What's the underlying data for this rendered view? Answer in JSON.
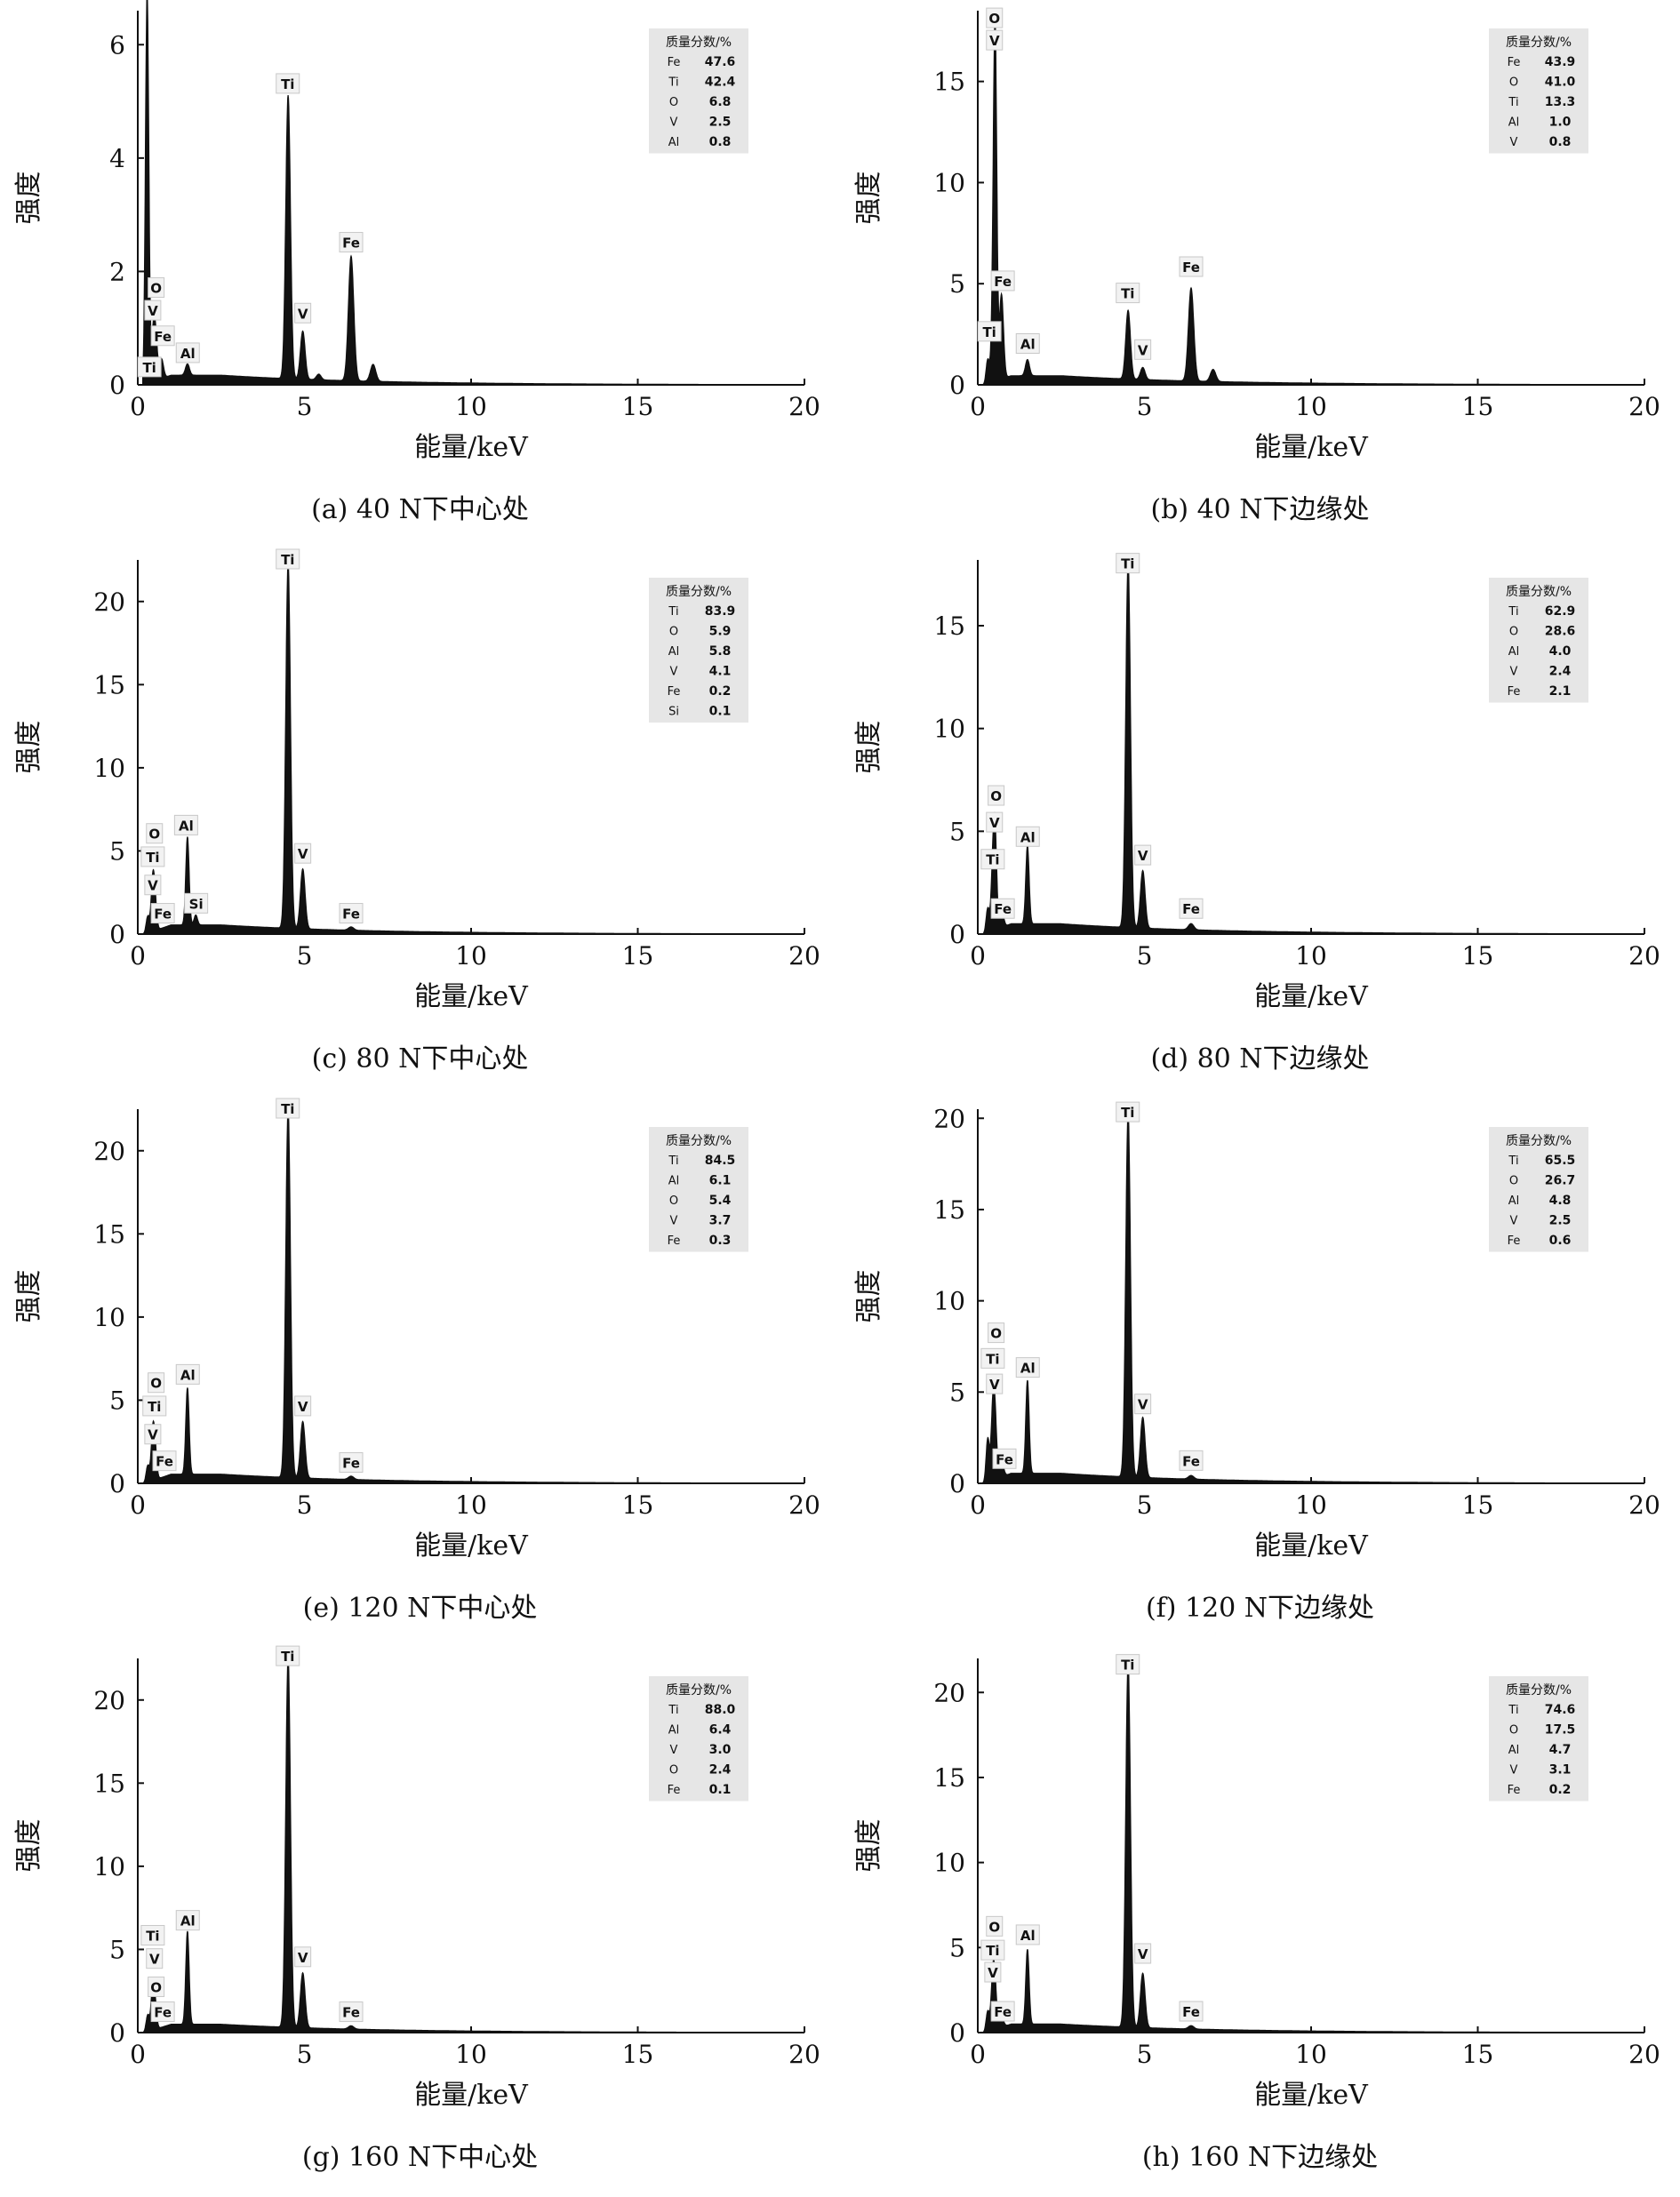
{
  "chart_data": [
    {
      "id": "a",
      "type": "line",
      "caption": "(a) 40 N下中心处",
      "xlabel": "能量/keV",
      "ylabel": "强度",
      "xlim": [
        0,
        20
      ],
      "ylim": [
        0,
        6.6
      ],
      "yticks": [
        0,
        2,
        4,
        6
      ],
      "xticks": [
        0,
        5,
        10,
        15,
        20
      ],
      "grid": false,
      "legend_placement": "top-right",
      "legend_title": "质量分数/%",
      "composition": [
        {
          "element": "Fe",
          "value": "47.6"
        },
        {
          "element": "Ti",
          "value": "42.4"
        },
        {
          "element": "O",
          "value": "6.8"
        },
        {
          "element": "V",
          "value": "2.5"
        },
        {
          "element": "Al",
          "value": "0.8"
        }
      ],
      "peaks": [
        {
          "x": 0.28,
          "y": 6.9,
          "w": 0.05
        },
        {
          "x": 0.45,
          "y": 0.5,
          "w": 0.05
        },
        {
          "x": 0.52,
          "y": 0.9,
          "w": 0.06
        },
        {
          "x": 0.71,
          "y": 0.35,
          "w": 0.06
        },
        {
          "x": 1.49,
          "y": 0.2,
          "w": 0.06
        },
        {
          "x": 4.51,
          "y": 5.0,
          "w": 0.07
        },
        {
          "x": 4.95,
          "y": 0.85,
          "w": 0.07
        },
        {
          "x": 5.43,
          "y": 0.1,
          "w": 0.07
        },
        {
          "x": 6.4,
          "y": 2.2,
          "w": 0.08
        },
        {
          "x": 7.06,
          "y": 0.3,
          "w": 0.08
        }
      ],
      "background": 0.17,
      "labels": [
        {
          "text": "O",
          "x": 0.55,
          "y": 1.7
        },
        {
          "text": "V",
          "x": 0.45,
          "y": 1.3
        },
        {
          "text": "Fe",
          "x": 0.75,
          "y": 0.85
        },
        {
          "text": "Ti",
          "x": 0.35,
          "y": 0.3
        },
        {
          "text": "Al",
          "x": 1.5,
          "y": 0.55
        },
        {
          "text": "Ti",
          "x": 4.5,
          "y": 5.3
        },
        {
          "text": "V",
          "x": 4.95,
          "y": 1.25
        },
        {
          "text": "Fe",
          "x": 6.4,
          "y": 2.5
        }
      ]
    },
    {
      "id": "b",
      "type": "line",
      "caption": "(b) 40 N下边缘处",
      "xlabel": "能量/keV",
      "ylabel": "强度",
      "xlim": [
        0,
        20
      ],
      "ylim": [
        0,
        18.5
      ],
      "yticks": [
        0,
        5,
        10,
        15
      ],
      "xticks": [
        0,
        5,
        10,
        15,
        20
      ],
      "grid": false,
      "legend_placement": "top-right",
      "legend_title": "质量分数/%",
      "composition": [
        {
          "element": "Fe",
          "value": "43.9"
        },
        {
          "element": "O",
          "value": "41.0"
        },
        {
          "element": "Ti",
          "value": "13.3"
        },
        {
          "element": "Al",
          "value": "1.0"
        },
        {
          "element": "V",
          "value": "0.8"
        }
      ],
      "peaks": [
        {
          "x": 0.3,
          "y": 1.2,
          "w": 0.05
        },
        {
          "x": 0.45,
          "y": 2.5,
          "w": 0.05
        },
        {
          "x": 0.52,
          "y": 17.0,
          "w": 0.05
        },
        {
          "x": 0.71,
          "y": 4.2,
          "w": 0.06
        },
        {
          "x": 1.49,
          "y": 0.8,
          "w": 0.06
        },
        {
          "x": 4.51,
          "y": 3.4,
          "w": 0.07
        },
        {
          "x": 4.95,
          "y": 0.6,
          "w": 0.07
        },
        {
          "x": 6.4,
          "y": 4.6,
          "w": 0.08
        },
        {
          "x": 7.06,
          "y": 0.6,
          "w": 0.08
        }
      ],
      "background": 0.45,
      "labels": [
        {
          "text": "O",
          "x": 0.5,
          "y": 18.1
        },
        {
          "text": "V",
          "x": 0.5,
          "y": 17.0
        },
        {
          "text": "Fe",
          "x": 0.75,
          "y": 5.1
        },
        {
          "text": "Ti",
          "x": 0.35,
          "y": 2.6
        },
        {
          "text": "Al",
          "x": 1.5,
          "y": 2.0
        },
        {
          "text": "Ti",
          "x": 4.5,
          "y": 4.5
        },
        {
          "text": "V",
          "x": 4.95,
          "y": 1.7
        },
        {
          "text": "Fe",
          "x": 6.4,
          "y": 5.8
        }
      ]
    },
    {
      "id": "c",
      "type": "line",
      "caption": "(c) 80 N下中心处",
      "xlabel": "能量/keV",
      "ylabel": "强度",
      "xlim": [
        0,
        20
      ],
      "ylim": [
        0,
        22.5
      ],
      "yticks": [
        0,
        5,
        10,
        15,
        20
      ],
      "xticks": [
        0,
        5,
        10,
        15,
        20
      ],
      "grid": false,
      "legend_placement": "top-right",
      "legend_title": "质量分数/%",
      "composition": [
        {
          "element": "Ti",
          "value": "83.9"
        },
        {
          "element": "O",
          "value": "5.9"
        },
        {
          "element": "Al",
          "value": "5.8"
        },
        {
          "element": "V",
          "value": "4.1"
        },
        {
          "element": "Fe",
          "value": "0.2"
        },
        {
          "element": "Si",
          "value": "0.1"
        }
      ],
      "peaks": [
        {
          "x": 0.3,
          "y": 1.0,
          "w": 0.05
        },
        {
          "x": 0.45,
          "y": 3.0,
          "w": 0.05
        },
        {
          "x": 0.52,
          "y": 1.5,
          "w": 0.05
        },
        {
          "x": 1.49,
          "y": 5.3,
          "w": 0.05
        },
        {
          "x": 1.74,
          "y": 0.6,
          "w": 0.05
        },
        {
          "x": 4.51,
          "y": 22.0,
          "w": 0.07
        },
        {
          "x": 4.95,
          "y": 3.6,
          "w": 0.07
        },
        {
          "x": 6.4,
          "y": 0.2,
          "w": 0.08
        }
      ],
      "background": 0.55,
      "labels": [
        {
          "text": "O",
          "x": 0.5,
          "y": 6.0
        },
        {
          "text": "Ti",
          "x": 0.45,
          "y": 4.6
        },
        {
          "text": "V",
          "x": 0.45,
          "y": 2.9
        },
        {
          "text": "Fe",
          "x": 0.75,
          "y": 1.2
        },
        {
          "text": "Al",
          "x": 1.45,
          "y": 6.5
        },
        {
          "text": "Si",
          "x": 1.75,
          "y": 1.8
        },
        {
          "text": "Ti",
          "x": 4.5,
          "y": 22.5
        },
        {
          "text": "V",
          "x": 4.95,
          "y": 4.8
        },
        {
          "text": "Fe",
          "x": 6.4,
          "y": 1.2
        }
      ]
    },
    {
      "id": "d",
      "type": "line",
      "caption": "(d) 80 N下边缘处",
      "xlabel": "能量/keV",
      "ylabel": "强度",
      "xlim": [
        0,
        20
      ],
      "ylim": [
        0,
        18.2
      ],
      "yticks": [
        0,
        5,
        10,
        15
      ],
      "xticks": [
        0,
        5,
        10,
        15,
        20
      ],
      "grid": false,
      "legend_placement": "top-right",
      "legend_title": "质量分数/%",
      "composition": [
        {
          "element": "Ti",
          "value": "62.9"
        },
        {
          "element": "O",
          "value": "28.6"
        },
        {
          "element": "Al",
          "value": "4.0"
        },
        {
          "element": "V",
          "value": "2.4"
        },
        {
          "element": "Fe",
          "value": "2.1"
        }
      ],
      "peaks": [
        {
          "x": 0.3,
          "y": 1.2,
          "w": 0.05
        },
        {
          "x": 0.45,
          "y": 2.8,
          "w": 0.05
        },
        {
          "x": 0.52,
          "y": 4.3,
          "w": 0.05
        },
        {
          "x": 0.71,
          "y": 0.9,
          "w": 0.06
        },
        {
          "x": 1.49,
          "y": 3.8,
          "w": 0.05
        },
        {
          "x": 4.51,
          "y": 17.8,
          "w": 0.07
        },
        {
          "x": 4.95,
          "y": 2.8,
          "w": 0.07
        },
        {
          "x": 6.4,
          "y": 0.3,
          "w": 0.08
        }
      ],
      "background": 0.5,
      "labels": [
        {
          "text": "O",
          "x": 0.55,
          "y": 6.7
        },
        {
          "text": "V",
          "x": 0.5,
          "y": 5.4
        },
        {
          "text": "Ti",
          "x": 0.45,
          "y": 3.6
        },
        {
          "text": "Fe",
          "x": 0.75,
          "y": 1.2
        },
        {
          "text": "Al",
          "x": 1.5,
          "y": 4.7
        },
        {
          "text": "Ti",
          "x": 4.5,
          "y": 18.0
        },
        {
          "text": "V",
          "x": 4.95,
          "y": 3.8
        },
        {
          "text": "Fe",
          "x": 6.4,
          "y": 1.2
        }
      ]
    },
    {
      "id": "e",
      "type": "line",
      "caption": "(e) 120 N下中心处",
      "xlabel": "能量/keV",
      "ylabel": "强度",
      "xlim": [
        0,
        20
      ],
      "ylim": [
        0,
        22.5
      ],
      "yticks": [
        0,
        5,
        10,
        15,
        20
      ],
      "xticks": [
        0,
        5,
        10,
        15,
        20
      ],
      "grid": false,
      "legend_placement": "top-right",
      "legend_title": "质量分数/%",
      "composition": [
        {
          "element": "Ti",
          "value": "84.5"
        },
        {
          "element": "Al",
          "value": "6.1"
        },
        {
          "element": "O",
          "value": "5.4"
        },
        {
          "element": "V",
          "value": "3.7"
        },
        {
          "element": "Fe",
          "value": "0.3"
        }
      ],
      "peaks": [
        {
          "x": 0.3,
          "y": 1.0,
          "w": 0.05
        },
        {
          "x": 0.45,
          "y": 2.8,
          "w": 0.05
        },
        {
          "x": 0.52,
          "y": 1.6,
          "w": 0.05
        },
        {
          "x": 1.49,
          "y": 5.2,
          "w": 0.05
        },
        {
          "x": 4.51,
          "y": 22.2,
          "w": 0.07
        },
        {
          "x": 4.95,
          "y": 3.4,
          "w": 0.07
        },
        {
          "x": 6.4,
          "y": 0.2,
          "w": 0.08
        }
      ],
      "background": 0.55,
      "labels": [
        {
          "text": "O",
          "x": 0.55,
          "y": 6.0
        },
        {
          "text": "Ti",
          "x": 0.5,
          "y": 4.6
        },
        {
          "text": "V",
          "x": 0.45,
          "y": 2.9
        },
        {
          "text": "Fe",
          "x": 0.8,
          "y": 1.3
        },
        {
          "text": "Al",
          "x": 1.5,
          "y": 6.5
        },
        {
          "text": "Ti",
          "x": 4.5,
          "y": 22.5
        },
        {
          "text": "V",
          "x": 4.95,
          "y": 4.6
        },
        {
          "text": "Fe",
          "x": 6.4,
          "y": 1.2
        }
      ]
    },
    {
      "id": "f",
      "type": "line",
      "caption": "(f) 120 N下边缘处",
      "xlabel": "能量/keV",
      "ylabel": "强度",
      "xlim": [
        0,
        20
      ],
      "ylim": [
        0,
        20.5
      ],
      "yticks": [
        0,
        5,
        10,
        15,
        20
      ],
      "xticks": [
        0,
        5,
        10,
        15,
        20
      ],
      "grid": false,
      "legend_placement": "top-right",
      "legend_title": "质量分数/%",
      "composition": [
        {
          "element": "Ti",
          "value": "65.5"
        },
        {
          "element": "O",
          "value": "26.7"
        },
        {
          "element": "Al",
          "value": "4.8"
        },
        {
          "element": "V",
          "value": "2.5"
        },
        {
          "element": "Fe",
          "value": "0.6"
        }
      ],
      "peaks": [
        {
          "x": 0.3,
          "y": 2.4,
          "w": 0.05
        },
        {
          "x": 0.45,
          "y": 3.6,
          "w": 0.05
        },
        {
          "x": 0.52,
          "y": 3.0,
          "w": 0.05
        },
        {
          "x": 0.71,
          "y": 0.9,
          "w": 0.06
        },
        {
          "x": 1.49,
          "y": 5.1,
          "w": 0.05
        },
        {
          "x": 4.51,
          "y": 20.0,
          "w": 0.07
        },
        {
          "x": 4.95,
          "y": 3.3,
          "w": 0.07
        },
        {
          "x": 6.4,
          "y": 0.2,
          "w": 0.08
        }
      ],
      "background": 0.55,
      "labels": [
        {
          "text": "O",
          "x": 0.55,
          "y": 8.2
        },
        {
          "text": "Ti",
          "x": 0.45,
          "y": 6.8
        },
        {
          "text": "V",
          "x": 0.5,
          "y": 5.4
        },
        {
          "text": "Fe",
          "x": 0.8,
          "y": 1.3
        },
        {
          "text": "Al",
          "x": 1.5,
          "y": 6.3
        },
        {
          "text": "Ti",
          "x": 4.5,
          "y": 20.3
        },
        {
          "text": "V",
          "x": 4.95,
          "y": 4.3
        },
        {
          "text": "Fe",
          "x": 6.4,
          "y": 1.2
        }
      ]
    },
    {
      "id": "g",
      "type": "line",
      "caption": "(g) 160 N下中心处",
      "xlabel": "能量/keV",
      "ylabel": "强度",
      "xlim": [
        0,
        20
      ],
      "ylim": [
        0,
        22.5
      ],
      "yticks": [
        0,
        5,
        10,
        15,
        20
      ],
      "xticks": [
        0,
        5,
        10,
        15,
        20
      ],
      "grid": false,
      "legend_placement": "top-right",
      "legend_title": "质量分数/%",
      "composition": [
        {
          "element": "Ti",
          "value": "88.0"
        },
        {
          "element": "Al",
          "value": "6.4"
        },
        {
          "element": "V",
          "value": "3.0"
        },
        {
          "element": "O",
          "value": "2.4"
        },
        {
          "element": "Fe",
          "value": "0.1"
        }
      ],
      "peaks": [
        {
          "x": 0.3,
          "y": 1.0,
          "w": 0.05
        },
        {
          "x": 0.45,
          "y": 2.6,
          "w": 0.05
        },
        {
          "x": 0.52,
          "y": 1.2,
          "w": 0.05
        },
        {
          "x": 1.49,
          "y": 5.6,
          "w": 0.05
        },
        {
          "x": 4.51,
          "y": 22.3,
          "w": 0.07
        },
        {
          "x": 4.95,
          "y": 3.3,
          "w": 0.07
        },
        {
          "x": 6.4,
          "y": 0.2,
          "w": 0.08
        }
      ],
      "background": 0.5,
      "labels": [
        {
          "text": "Ti",
          "x": 0.45,
          "y": 5.8
        },
        {
          "text": "V",
          "x": 0.5,
          "y": 4.4
        },
        {
          "text": "O",
          "x": 0.55,
          "y": 2.7
        },
        {
          "text": "Fe",
          "x": 0.75,
          "y": 1.2
        },
        {
          "text": "Al",
          "x": 1.5,
          "y": 6.7
        },
        {
          "text": "Ti",
          "x": 4.5,
          "y": 22.6
        },
        {
          "text": "V",
          "x": 4.95,
          "y": 4.5
        },
        {
          "text": "Fe",
          "x": 6.4,
          "y": 1.2
        }
      ]
    },
    {
      "id": "h",
      "type": "line",
      "caption": "(h) 160 N下边缘处",
      "xlabel": "能量/keV",
      "ylabel": "强度",
      "xlim": [
        0,
        20
      ],
      "ylim": [
        0,
        22
      ],
      "yticks": [
        0,
        5,
        10,
        15,
        20
      ],
      "xticks": [
        0,
        5,
        10,
        15,
        20
      ],
      "grid": false,
      "legend_placement": "top-right",
      "legend_title": "质量分数/%",
      "composition": [
        {
          "element": "Ti",
          "value": "74.6"
        },
        {
          "element": "O",
          "value": "17.5"
        },
        {
          "element": "Al",
          "value": "4.7"
        },
        {
          "element": "V",
          "value": "3.1"
        },
        {
          "element": "Fe",
          "value": "0.2"
        }
      ],
      "peaks": [
        {
          "x": 0.3,
          "y": 1.2,
          "w": 0.05
        },
        {
          "x": 0.45,
          "y": 3.0,
          "w": 0.05
        },
        {
          "x": 0.52,
          "y": 2.2,
          "w": 0.05
        },
        {
          "x": 0.71,
          "y": 0.6,
          "w": 0.06
        },
        {
          "x": 1.49,
          "y": 4.4,
          "w": 0.05
        },
        {
          "x": 4.51,
          "y": 21.5,
          "w": 0.07
        },
        {
          "x": 4.95,
          "y": 3.2,
          "w": 0.07
        },
        {
          "x": 6.4,
          "y": 0.2,
          "w": 0.08
        }
      ],
      "background": 0.5,
      "labels": [
        {
          "text": "O",
          "x": 0.5,
          "y": 6.2
        },
        {
          "text": "Ti",
          "x": 0.45,
          "y": 4.8
        },
        {
          "text": "V",
          "x": 0.45,
          "y": 3.5
        },
        {
          "text": "Fe",
          "x": 0.75,
          "y": 1.2
        },
        {
          "text": "Al",
          "x": 1.5,
          "y": 5.7
        },
        {
          "text": "Ti",
          "x": 4.5,
          "y": 21.6
        },
        {
          "text": "V",
          "x": 4.95,
          "y": 4.6
        },
        {
          "text": "Fe",
          "x": 6.4,
          "y": 1.2
        }
      ]
    }
  ]
}
